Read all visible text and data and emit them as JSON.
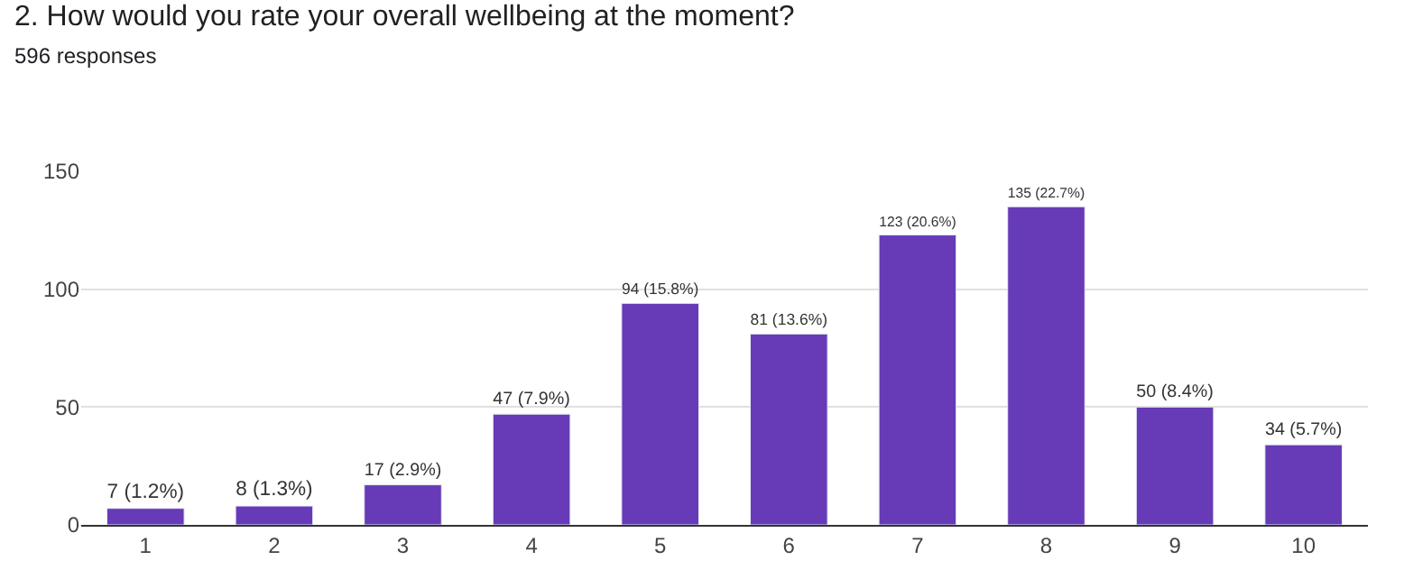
{
  "chart_data": {
    "type": "bar",
    "title": "2. How would you rate your overall wellbeing at the moment?",
    "subtitle": "596 responses",
    "categories": [
      "1",
      "2",
      "3",
      "4",
      "5",
      "6",
      "7",
      "8",
      "9",
      "10"
    ],
    "values": [
      7,
      8,
      17,
      47,
      94,
      81,
      123,
      135,
      50,
      34
    ],
    "value_labels": [
      "7 (1.2%)",
      "8 (1.3%)",
      "17 (2.9%)",
      "47 (7.9%)",
      "94 (15.8%)",
      "81 (13.6%)",
      "123 (20.6%)",
      "135 (22.7%)",
      "50 (8.4%)",
      "34 (5.7%)"
    ],
    "color": "#673ab7",
    "ylim": [
      0,
      150
    ],
    "yticks": [
      0,
      50,
      100,
      150
    ],
    "grid": "y"
  }
}
